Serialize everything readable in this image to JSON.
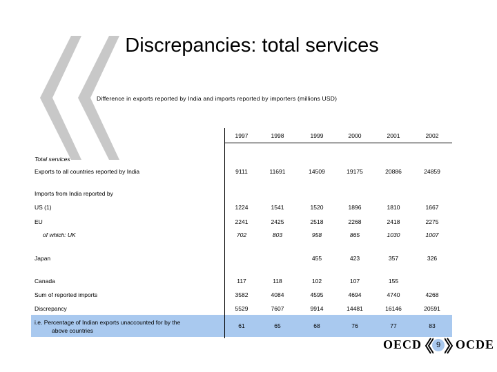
{
  "slide": {
    "title": "Discrepancies: total services",
    "subtitle": "Difference in exports reported by India and imports reported by importers (millions USD)",
    "page_number": "9",
    "logo_left": "OECD",
    "logo_right": "OCDE",
    "colors": {
      "highlight": "#a9c9ef",
      "quote_mark": "#c8c8c8"
    }
  },
  "table": {
    "years": [
      "1997",
      "1998",
      "1999",
      "2000",
      "2001",
      "2002"
    ],
    "sections": {
      "total_services": "Total services",
      "imports_from": "Imports from India reported by"
    },
    "rows": [
      {
        "label": "Exports to all countries reported by India",
        "values": [
          "9111",
          "11691",
          "14509",
          "19175",
          "20886",
          "24859"
        ]
      },
      {
        "label": "US (1)",
        "values": [
          "1224",
          "1541",
          "1520",
          "1896",
          "1810",
          "1667"
        ]
      },
      {
        "label": "EU",
        "values": [
          "2241",
          "2425",
          "2518",
          "2268",
          "2418",
          "2275"
        ]
      },
      {
        "label": "of which: UK",
        "values": [
          "702",
          "803",
          "958",
          "865",
          "1030",
          "1007"
        ]
      },
      {
        "label": "Japan",
        "values": [
          "",
          "",
          "455",
          "423",
          "357",
          "326"
        ]
      },
      {
        "label": "Canada",
        "values": [
          "117",
          "118",
          "102",
          "107",
          "155",
          ""
        ]
      },
      {
        "label": "Sum of reported imports",
        "values": [
          "3582",
          "4084",
          "4595",
          "4694",
          "4740",
          "4268"
        ]
      },
      {
        "label": "Discrepancy",
        "values": [
          "5529",
          "7607",
          "9914",
          "14481",
          "16146",
          "20591"
        ]
      },
      {
        "label_line1": "i.e. Percentage of Indian exports unaccounted for by the",
        "label_line2": "above countries",
        "values": [
          "61",
          "65",
          "68",
          "76",
          "77",
          "83"
        ]
      }
    ]
  }
}
